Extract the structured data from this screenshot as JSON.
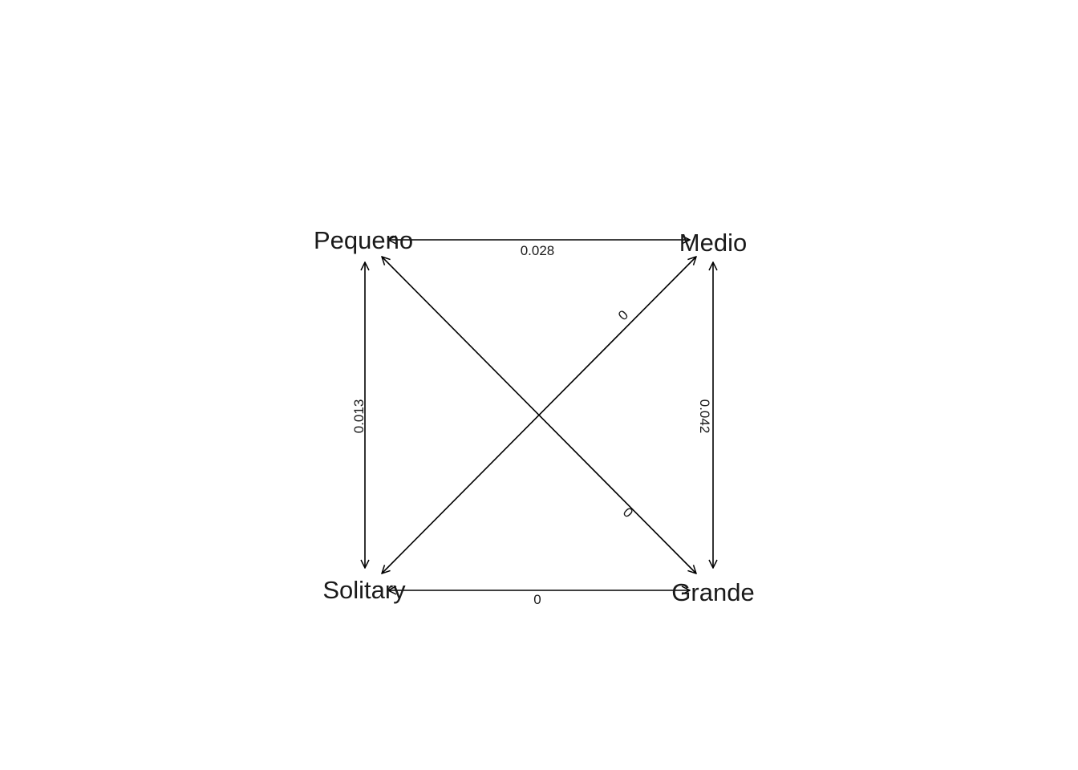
{
  "diagram": {
    "nodes": [
      {
        "id": "pequeno",
        "label": "Pequeno"
      },
      {
        "id": "medio",
        "label": "Medio"
      },
      {
        "id": "solitary",
        "label": "Solitary"
      },
      {
        "id": "grande",
        "label": "Grande"
      }
    ],
    "edges": [
      {
        "id": "pequeno-medio",
        "from": "pequeno",
        "to": "medio",
        "label": "0.028",
        "direction": "both"
      },
      {
        "id": "pequeno-solitary",
        "from": "pequeno",
        "to": "solitary",
        "label": "0.013",
        "direction": "both"
      },
      {
        "id": "medio-grande",
        "from": "medio",
        "to": "grande",
        "label": "0.042",
        "direction": "both"
      },
      {
        "id": "solitary-grande",
        "from": "solitary",
        "to": "grande",
        "label": "0",
        "direction": "both"
      },
      {
        "id": "solitary-medio",
        "from": "solitary",
        "to": "medio",
        "label": "0",
        "direction": "both"
      },
      {
        "id": "pequeno-grande",
        "from": "pequeno",
        "to": "grande",
        "label": "0",
        "direction": "both"
      }
    ]
  }
}
